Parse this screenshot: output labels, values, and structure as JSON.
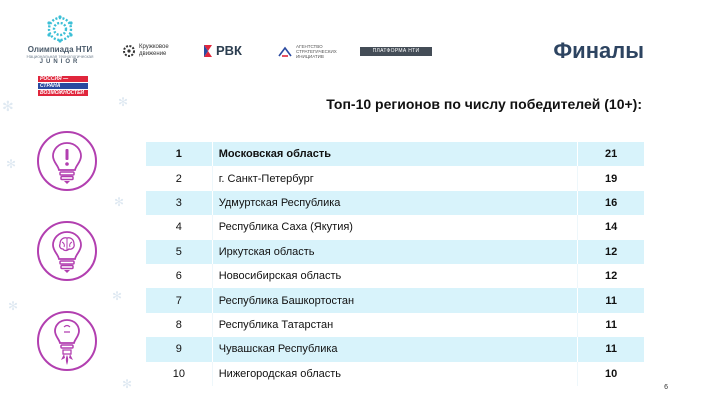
{
  "header": {
    "logo_nti": {
      "line1": "Олимпиада НТИ",
      "line2": "Национальная технологическая",
      "line3": "JUNIOR"
    },
    "logo_russia": [
      "РОССИЯ —",
      "СТРАНА",
      "ВОЗМОЖНОСТЕЙ"
    ],
    "logo_kruzh": "Кружковое движение",
    "logo_rvk": "РВК",
    "logo_asi": "АГЕНТСТВО СТРАТЕГИЧЕСКИХ ИНИЦИАТИВ",
    "logo_platform": "ПЛАТФОРМА НТИ"
  },
  "title": "Финалы",
  "subtitle": "Топ-10 регионов по числу победителей (10+):",
  "table": {
    "rows": [
      {
        "rank": "1",
        "region": "Московская область",
        "count": "21"
      },
      {
        "rank": "2",
        "region": "г. Санкт-Петербург",
        "count": "19"
      },
      {
        "rank": "3",
        "region": "Удмуртская Республика",
        "count": "16"
      },
      {
        "rank": "4",
        "region": "Республика Саха (Якутия)",
        "count": "14"
      },
      {
        "rank": "5",
        "region": "Иркутская область",
        "count": "12"
      },
      {
        "rank": "6",
        "region": "Новосибирская область",
        "count": "12"
      },
      {
        "rank": "7",
        "region": "Республика Башкортостан",
        "count": "11"
      },
      {
        "rank": "8",
        "region": "Республика Татарстан",
        "count": "11"
      },
      {
        "rank": "9",
        "region": "Чувашская Республика",
        "count": "11"
      },
      {
        "rank": "10",
        "region": "Нижегородская область",
        "count": "10"
      }
    ]
  },
  "page_number": "6",
  "colors": {
    "row_shade": "#d8f3fb",
    "title": "#2d4461",
    "icon_purple": "#b23fb0",
    "russia_blue": "#2a4aa0",
    "russia_red": "#e0263c"
  },
  "icons": [
    "bulb-exclamation-icon",
    "bulb-brain-icon",
    "bulb-rocket-icon"
  ]
}
